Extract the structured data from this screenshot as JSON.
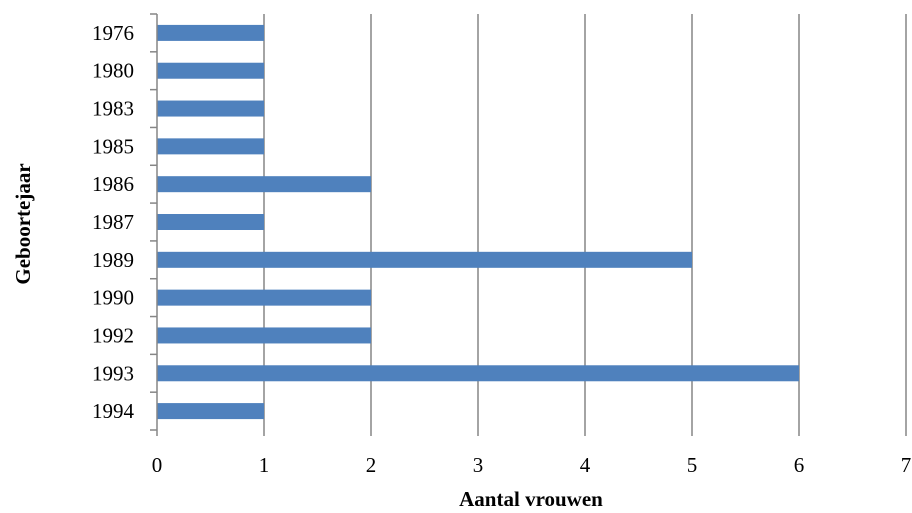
{
  "chart_data": {
    "type": "bar",
    "orientation": "horizontal",
    "categories": [
      "1976",
      "1980",
      "1983",
      "1985",
      "1986",
      "1987",
      "1989",
      "1990",
      "1992",
      "1993",
      "1994"
    ],
    "values": [
      1,
      1,
      1,
      1,
      2,
      1,
      5,
      2,
      2,
      6,
      1
    ],
    "x_ticks": [
      "0",
      "1",
      "2",
      "3",
      "4",
      "5",
      "6",
      "7"
    ],
    "xlim": [
      0,
      7
    ],
    "xlabel": "Aantal vrouwen",
    "ylabel": "Geboortejaar",
    "title": "",
    "grid": "vertical",
    "legend": "none",
    "bar_color": "#4F81BD",
    "grid_color": "#868686"
  }
}
